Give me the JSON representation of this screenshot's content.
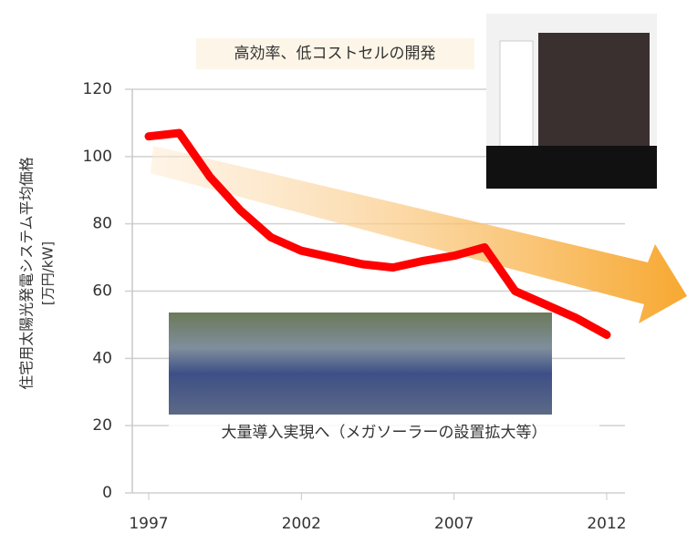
{
  "chart_data": {
    "type": "line",
    "y_label": "住宅用太陽光発電システム平均価格",
    "y_unit": "[万円/kW]",
    "annotations": [
      "高効率、低コストセルの開発",
      "大量導入実現へ（メガソーラーの設置拡大等）"
    ],
    "x": [
      1997,
      1998,
      1999,
      2000,
      2001,
      2002,
      2003,
      2004,
      2005,
      2006,
      2007,
      2008,
      2009,
      2010,
      2011,
      2012
    ],
    "values": [
      106,
      107,
      94,
      84,
      76,
      72,
      70,
      68,
      67,
      69,
      70.5,
      73,
      60,
      56,
      52,
      47
    ],
    "color": "#ff0000",
    "xlim": [
      1997,
      2012
    ],
    "xticks": [
      1997,
      2002,
      2007,
      2012
    ],
    "ylim": [
      0,
      120
    ],
    "yticks": [
      0,
      20,
      40,
      60,
      80,
      100,
      120
    ],
    "grid": true
  }
}
